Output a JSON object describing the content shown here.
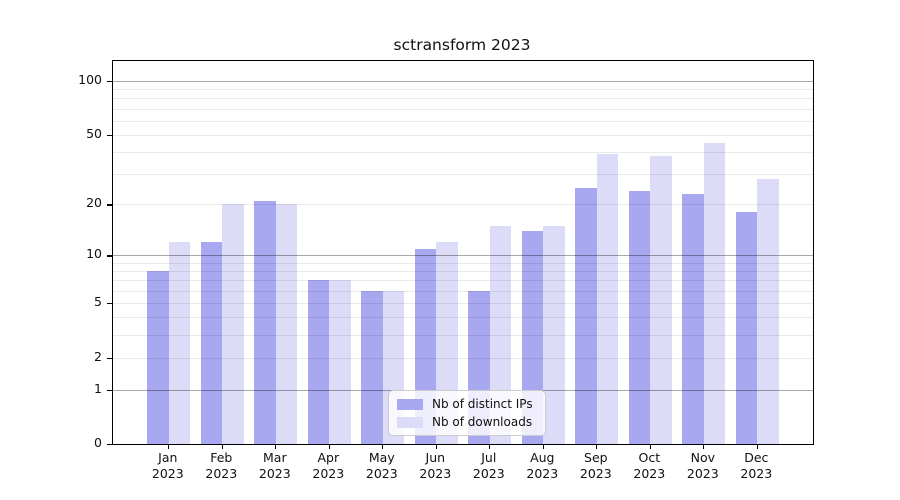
{
  "chart_data": {
    "type": "bar",
    "title": "sctransform 2023",
    "categories": [
      "Jan 2023",
      "Feb 2023",
      "Mar 2023",
      "Apr 2023",
      "May 2023",
      "Jun 2023",
      "Jul 2023",
      "Aug 2023",
      "Sep 2023",
      "Oct 2023",
      "Nov 2023",
      "Dec 2023"
    ],
    "series": [
      {
        "name": "Nb of distinct IPs",
        "color": "#a8a8f0",
        "values": [
          8,
          12,
          21,
          7,
          6,
          11,
          6,
          14,
          25,
          24,
          23,
          18
        ]
      },
      {
        "name": "Nb of downloads",
        "color": "#dcdcf8",
        "values": [
          12,
          20,
          20,
          7,
          6,
          12,
          15,
          15,
          39,
          38,
          45,
          28
        ]
      }
    ],
    "xlabel": "",
    "ylabel": "",
    "yscale": "log1p",
    "ylim": [
      0,
      129
    ],
    "yticks": [
      0,
      1,
      2,
      5,
      10,
      20,
      50,
      100
    ],
    "gridlines_major": [
      1,
      10,
      100
    ],
    "gridlines_minor": [
      2,
      3,
      4,
      5,
      6,
      7,
      8,
      9,
      20,
      30,
      40,
      50,
      60,
      70,
      80,
      90
    ],
    "grid": "horizontal",
    "legend_position": "lower center",
    "axis_color": "#000000",
    "background_color": "#ffffff"
  }
}
